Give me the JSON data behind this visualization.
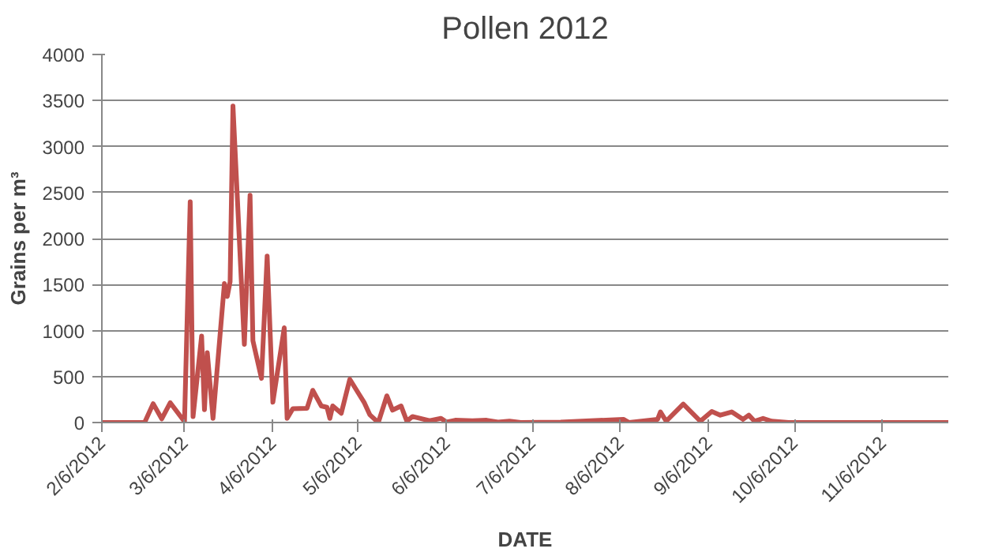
{
  "chart_data": {
    "type": "line",
    "title": "Pollen 2012",
    "xlabel": "DATE",
    "ylabel": "Grains per m³",
    "x": [
      "2012-02-06",
      "2012-02-21",
      "2012-02-24",
      "2012-02-27",
      "2012-03-01",
      "2012-03-06",
      "2012-03-08",
      "2012-03-09",
      "2012-03-12",
      "2012-03-13",
      "2012-03-14",
      "2012-03-16",
      "2012-03-20",
      "2012-03-21",
      "2012-03-22",
      "2012-03-23",
      "2012-03-27",
      "2012-03-29",
      "2012-03-30",
      "2012-04-02",
      "2012-04-04",
      "2012-04-06",
      "2012-04-10",
      "2012-04-11",
      "2012-04-13",
      "2012-04-18",
      "2012-04-20",
      "2012-04-23",
      "2012-04-25",
      "2012-04-26",
      "2012-04-27",
      "2012-04-30",
      "2012-05-03",
      "2012-05-06",
      "2012-05-08",
      "2012-05-10",
      "2012-05-13",
      "2012-05-16",
      "2012-05-18",
      "2012-05-21",
      "2012-05-23",
      "2012-05-25",
      "2012-05-31",
      "2012-06-04",
      "2012-06-06",
      "2012-06-09",
      "2012-06-15",
      "2012-06-20",
      "2012-06-24",
      "2012-06-28",
      "2012-07-02",
      "2012-07-16",
      "2012-08-07",
      "2012-08-09",
      "2012-08-19",
      "2012-08-20",
      "2012-08-22",
      "2012-08-28",
      "2012-09-03",
      "2012-09-07",
      "2012-09-10",
      "2012-09-14",
      "2012-09-18",
      "2012-09-20",
      "2012-09-22",
      "2012-09-25",
      "2012-09-28",
      "2012-10-04",
      "2012-11-29"
    ],
    "series": [
      {
        "color": "#c0504d",
        "values": [
          0,
          0,
          205,
          40,
          215,
          10,
          2400,
          65,
          940,
          140,
          760,
          45,
          1510,
          1370,
          1530,
          3440,
          850,
          2470,
          890,
          480,
          1810,
          220,
          1030,
          45,
          150,
          155,
          350,
          180,
          165,
          45,
          180,
          100,
          470,
          320,
          220,
          85,
          0,
          290,
          135,
          180,
          15,
          65,
          20,
          45,
          5,
          25,
          20,
          25,
          5,
          15,
          0,
          5,
          35,
          0,
          35,
          115,
          15,
          200,
          15,
          120,
          80,
          115,
          35,
          80,
          15,
          45,
          15,
          0,
          0
        ]
      }
    ],
    "xlim": [
      "2012-02-06",
      "2012-11-29"
    ],
    "xticks": [
      {
        "value": "2012-02-06",
        "label": "2/6/2012"
      },
      {
        "value": "2012-03-06",
        "label": "3/6/2012"
      },
      {
        "value": "2012-04-06",
        "label": "4/6/2012"
      },
      {
        "value": "2012-05-06",
        "label": "5/6/2012"
      },
      {
        "value": "2012-06-06",
        "label": "6/6/2012"
      },
      {
        "value": "2012-07-06",
        "label": "7/6/2012"
      },
      {
        "value": "2012-08-06",
        "label": "8/6/2012"
      },
      {
        "value": "2012-09-06",
        "label": "9/6/2012"
      },
      {
        "value": "2012-10-06",
        "label": "10/6/2012"
      },
      {
        "value": "2012-11-06",
        "label": "11/6/2012"
      }
    ],
    "ylim": [
      0,
      4000
    ],
    "yticks": [
      0,
      500,
      1000,
      1500,
      2000,
      2500,
      3000,
      3500,
      4000
    ],
    "grid": "y",
    "line_style": "solid"
  }
}
